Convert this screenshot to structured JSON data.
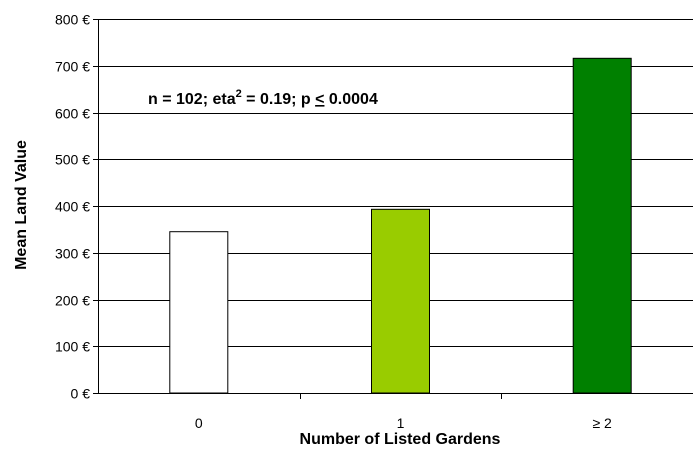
{
  "chart_data": {
    "type": "bar",
    "title": "",
    "xlabel": "Number of Listed Gardens",
    "ylabel": "Mean Land Value",
    "categories": [
      "0",
      "1",
      "≥ 2"
    ],
    "values": [
      345,
      393,
      716
    ],
    "bar_colors": [
      "#FFFFFF",
      "#99CC00",
      "#008000"
    ],
    "ylim": [
      0,
      800
    ],
    "yticks": [
      0,
      100,
      200,
      300,
      400,
      500,
      600,
      700,
      800
    ],
    "ytick_labels": [
      "0 €",
      "100 €",
      "200 €",
      "300 €",
      "400 €",
      "500 €",
      "600 €",
      "700 €",
      "800 €"
    ],
    "grid": true,
    "legend": "none",
    "annotation": {
      "prefix": "n = 102; eta",
      "superscript": "2",
      "middle": " = 0.19; p ",
      "underlined": "<",
      "suffix": " 0.0004"
    }
  }
}
